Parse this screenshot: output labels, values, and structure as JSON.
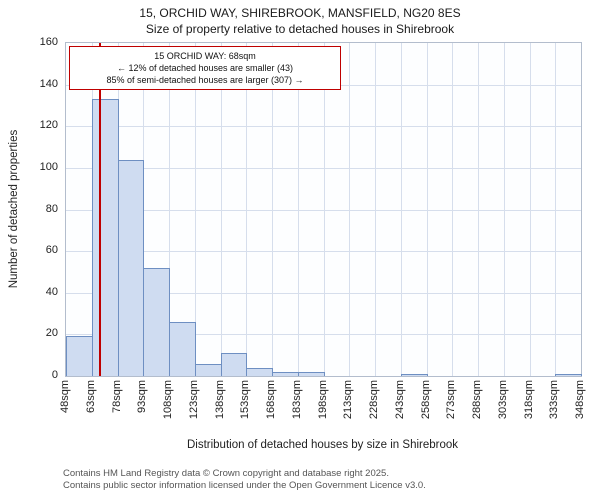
{
  "title": "15, ORCHID WAY, SHIREBROOK, MANSFIELD, NG20 8ES",
  "subtitle": "Size of property relative to detached houses in Shirebrook",
  "annotation": {
    "line1": "15 ORCHID WAY: 68sqm",
    "line2": "← 12% of detached houses are smaller (43)",
    "line3": "85% of semi-detached houses are larger (307) →"
  },
  "footer": {
    "line1": "Contains HM Land Registry data © Crown copyright and database right 2025.",
    "line2": "Contains public sector information licensed under the Open Government Licence v3.0."
  },
  "chart_data": {
    "type": "bar",
    "title": "15, ORCHID WAY, SHIREBROOK, MANSFIELD, NG20 8ES",
    "subtitle": "Size of property relative to detached houses in Shirebrook",
    "xlabel": "Distribution of detached houses by size in Shirebrook",
    "ylabel": "Number of detached properties",
    "ylim": [
      0,
      160
    ],
    "ytick_step": 20,
    "grid": true,
    "x_start": 48,
    "x_end": 348,
    "bin_size": 15,
    "bin_labels": [
      "48sqm",
      "63sqm",
      "78sqm",
      "93sqm",
      "108sqm",
      "123sqm",
      "138sqm",
      "153sqm",
      "168sqm",
      "183sqm",
      "198sqm",
      "213sqm",
      "228sqm",
      "243sqm",
      "258sqm",
      "273sqm",
      "288sqm",
      "303sqm",
      "318sqm",
      "333sqm",
      "348sqm"
    ],
    "values": [
      19,
      133,
      104,
      52,
      26,
      6,
      11,
      4,
      2,
      2,
      0,
      0,
      0,
      1,
      0,
      0,
      0,
      0,
      0,
      1
    ],
    "marker_value": 68,
    "colors": {
      "bar_fill": "#cfdcf1",
      "bar_border": "#6e8fc2",
      "marker": "#bf0000",
      "annotation_border": "#bf0000",
      "grid": "#d6deec"
    }
  }
}
